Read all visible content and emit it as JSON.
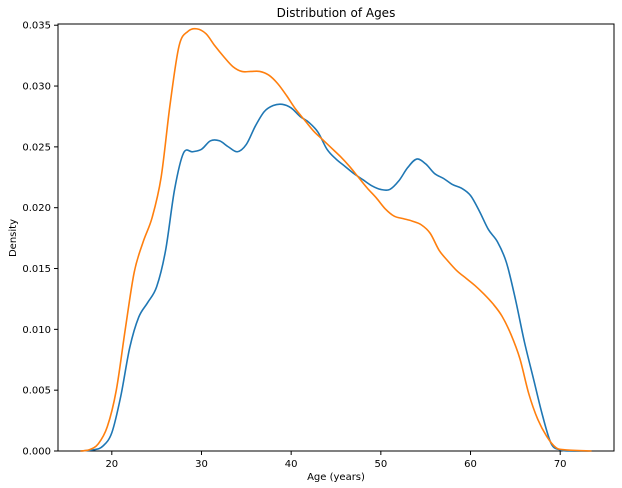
{
  "chart_data": {
    "type": "line",
    "title": "Distribution of Ages",
    "xlabel": "Age (years)",
    "ylabel": "Density",
    "xlim": [
      14,
      76
    ],
    "ylim": [
      0,
      0.0351
    ],
    "xticks": [
      20,
      30,
      40,
      50,
      60,
      70
    ],
    "xtick_labels": [
      "20",
      "30",
      "40",
      "50",
      "60",
      "70"
    ],
    "yticks": [
      0,
      0.005,
      0.01,
      0.015,
      0.02,
      0.025,
      0.03,
      0.035
    ],
    "ytick_labels": [
      "0.000",
      "0.005",
      "0.010",
      "0.015",
      "0.020",
      "0.025",
      "0.030",
      "0.035"
    ],
    "grid": false,
    "series": [
      {
        "color": "#1f77b4",
        "x": [
          16.5,
          18,
          19,
          20,
          21,
          22,
          23,
          24,
          25,
          26,
          27,
          28,
          29,
          30,
          31,
          32,
          33,
          34,
          35,
          36,
          37,
          38,
          39,
          40,
          41,
          42,
          43,
          44,
          45,
          46,
          47,
          48,
          49,
          50,
          51,
          52,
          53,
          54,
          55,
          56,
          57,
          58,
          59,
          60,
          61,
          62,
          63,
          64,
          65,
          66,
          67,
          68,
          69,
          70,
          71,
          73.5
        ],
        "y": [
          0,
          0.0001,
          0.0004,
          0.0015,
          0.0045,
          0.0085,
          0.011,
          0.0122,
          0.0135,
          0.0165,
          0.0215,
          0.0245,
          0.0246,
          0.0248,
          0.0255,
          0.0255,
          0.025,
          0.0246,
          0.0252,
          0.0267,
          0.0279,
          0.0284,
          0.0285,
          0.0282,
          0.0275,
          0.027,
          0.0262,
          0.0248,
          0.024,
          0.0234,
          0.0228,
          0.0223,
          0.0218,
          0.0215,
          0.0215,
          0.0222,
          0.0233,
          0.024,
          0.0236,
          0.0228,
          0.0224,
          0.0219,
          0.0216,
          0.021,
          0.0197,
          0.0182,
          0.0172,
          0.0155,
          0.0125,
          0.009,
          0.006,
          0.003,
          0.0006,
          0.0001,
          0,
          0
        ]
      },
      {
        "color": "#ff7f0e",
        "x": [
          16.5,
          17.5,
          18.5,
          19.5,
          20.5,
          21.5,
          22.5,
          23.5,
          24.5,
          25.5,
          26.5,
          27.5,
          28.5,
          29.5,
          30.5,
          31.5,
          32.5,
          33.5,
          34.5,
          35.5,
          36.5,
          37.5,
          38.5,
          39.5,
          40.5,
          41.5,
          42.5,
          43.5,
          44.5,
          45.5,
          46.5,
          47.5,
          48.5,
          49.5,
          50.5,
          51.5,
          52.5,
          53.5,
          54.5,
          55.5,
          56.5,
          57.5,
          58.5,
          59.5,
          60.5,
          61.5,
          62.5,
          63.5,
          64.5,
          65.5,
          66.5,
          67.5,
          68.5,
          69.5,
          70.5,
          73.5
        ],
        "y": [
          0,
          0.0001,
          0.0006,
          0.002,
          0.005,
          0.01,
          0.0147,
          0.0172,
          0.0192,
          0.0225,
          0.0285,
          0.0333,
          0.0345,
          0.0347,
          0.0343,
          0.0333,
          0.0324,
          0.0316,
          0.0312,
          0.0312,
          0.0312,
          0.0309,
          0.0302,
          0.0292,
          0.0281,
          0.0272,
          0.0263,
          0.0256,
          0.0249,
          0.0242,
          0.0234,
          0.0225,
          0.0216,
          0.0208,
          0.0199,
          0.0193,
          0.0191,
          0.0189,
          0.0186,
          0.0179,
          0.0165,
          0.0156,
          0.0148,
          0.0142,
          0.0136,
          0.0129,
          0.0121,
          0.0111,
          0.0096,
          0.0076,
          0.0047,
          0.0026,
          0.0012,
          0.0003,
          0.0001,
          0
        ]
      }
    ]
  }
}
